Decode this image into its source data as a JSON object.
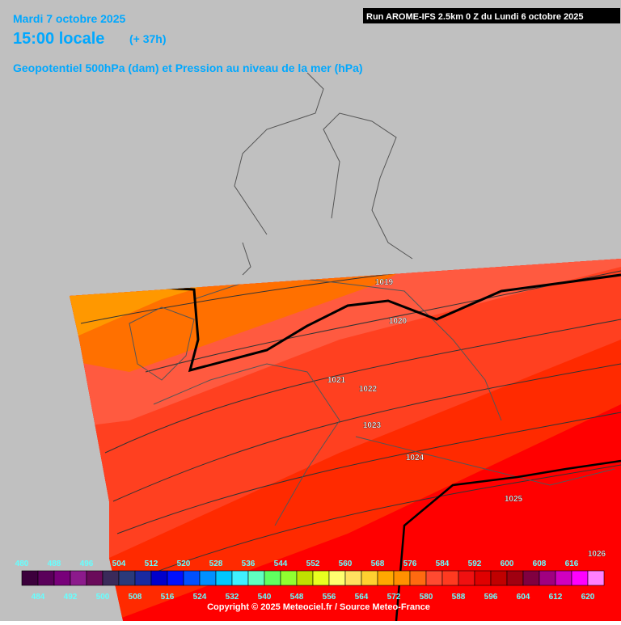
{
  "header": {
    "date": "Mardi 7 octobre 2025",
    "time": "15:00 locale",
    "lead": "(+ 37h)",
    "subtitle": "Geopotentiel 500hPa (dam) et Pression au niveau de la mer (hPa)",
    "run": "Run AROME-IFS 2.5km 0 Z du Lundi 6 octobre 2025"
  },
  "isobar_labels": [
    1019,
    1020,
    1021,
    1022,
    1023,
    1024,
    1025,
    1026
  ],
  "colorbar": {
    "values": [
      480,
      484,
      488,
      492,
      496,
      500,
      504,
      508,
      512,
      516,
      520,
      524,
      528,
      532,
      536,
      540,
      544,
      548,
      552,
      556,
      560,
      564,
      568,
      572,
      576,
      580,
      584,
      588,
      592,
      596,
      600,
      604,
      608,
      612,
      616,
      620
    ],
    "colors": [
      "#3c003c",
      "#5a005a",
      "#78007a",
      "#8c1a8c",
      "#6a0a5a",
      "#3a2a5a",
      "#2a3a7a",
      "#1a2aa0",
      "#0000cc",
      "#0010ff",
      "#0050ff",
      "#0090ff",
      "#00c8ff",
      "#40f0ff",
      "#60ffc0",
      "#60ff60",
      "#90ff30",
      "#c0e000",
      "#e8ff20",
      "#ffff70",
      "#ffe060",
      "#ffd030",
      "#ffa800",
      "#ff9000",
      "#ff6a10",
      "#ff4a30",
      "#ff3a20",
      "#f01010",
      "#e00000",
      "#c00000",
      "#a00010",
      "#800040",
      "#a00080",
      "#d000c0",
      "#ff00ff",
      "#ff80ff"
    ]
  },
  "footer": "Copyright © 2025 Meteociel.fr / Source Meteo-France"
}
